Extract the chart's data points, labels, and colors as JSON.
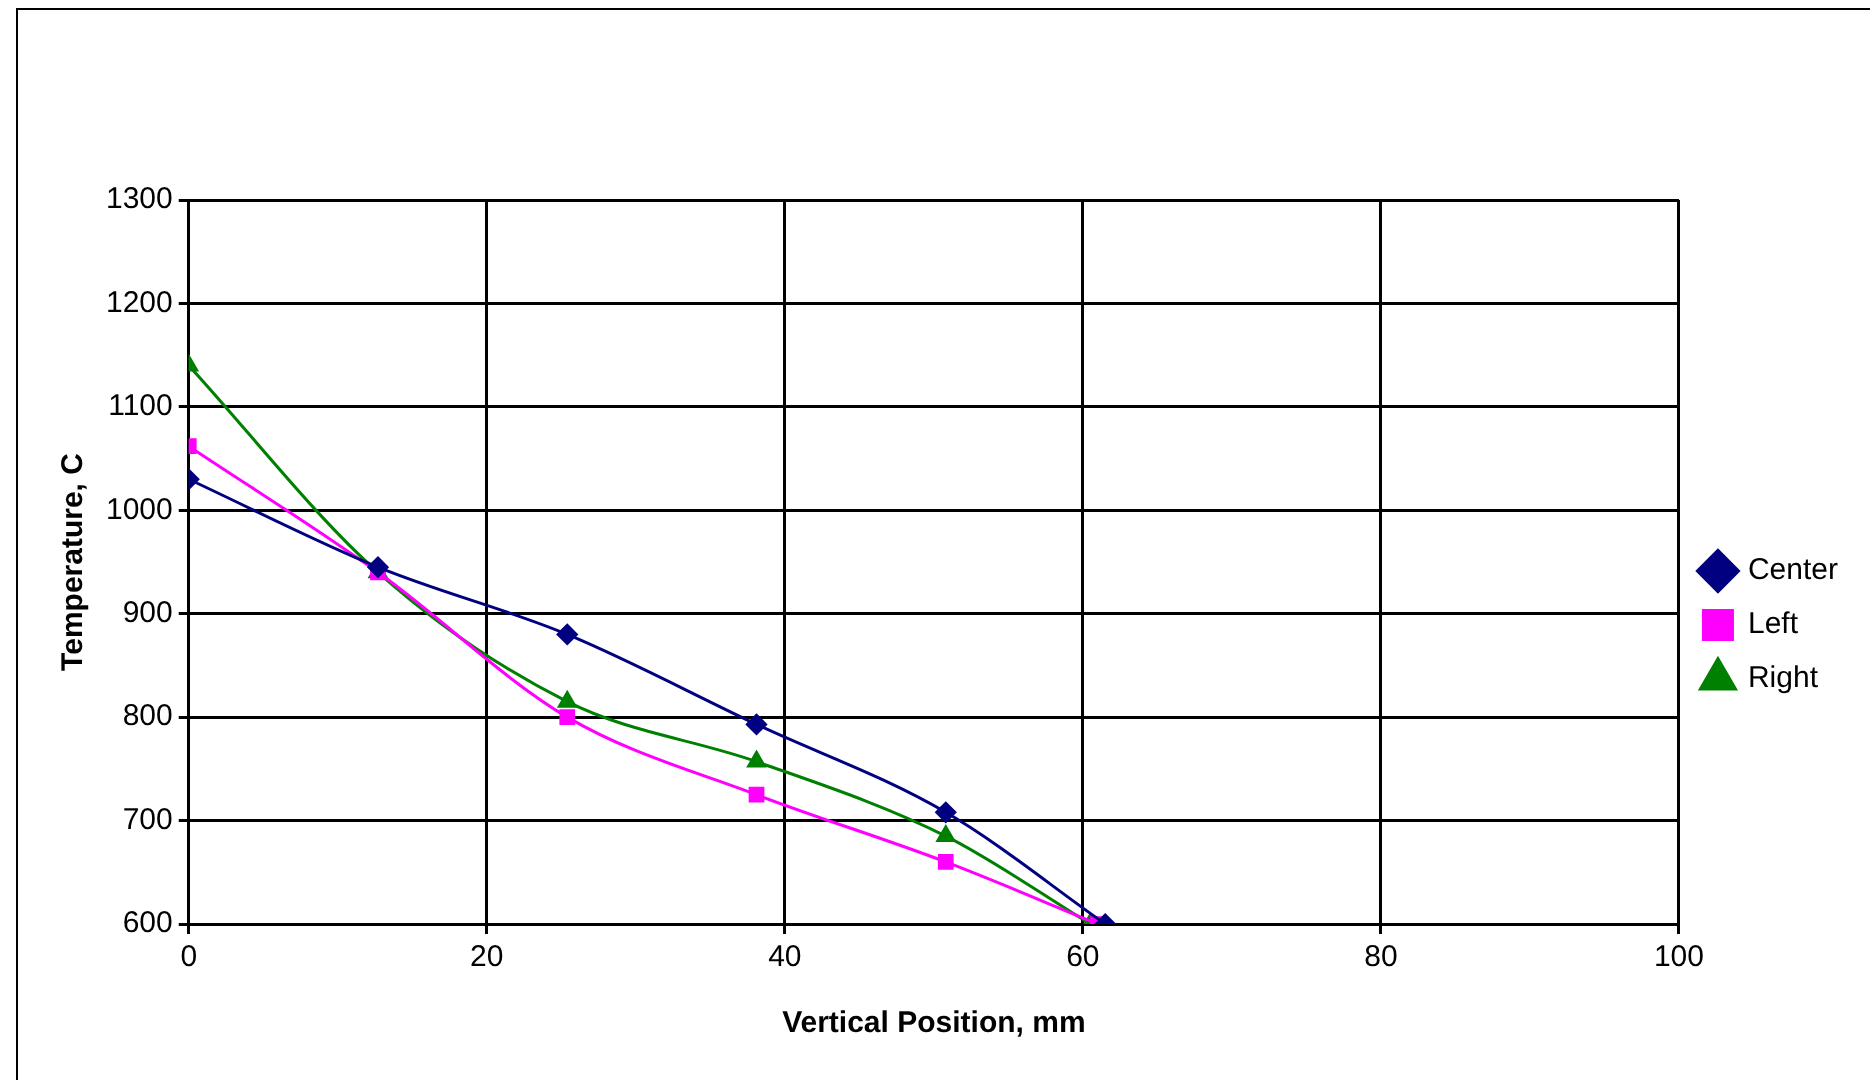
{
  "chart_data": {
    "type": "line",
    "xlabel": "Vertical Position, mm",
    "ylabel": "Temperature, C",
    "xlim": [
      0,
      100
    ],
    "xticks": [
      0,
      20,
      40,
      60,
      80,
      100
    ],
    "ylim": [
      600,
      1300
    ],
    "yticks": [
      600,
      700,
      800,
      900,
      1000,
      1100,
      1200,
      1300
    ],
    "grid": true,
    "legend": "right",
    "series": [
      {
        "name": "Center",
        "color": "#000080",
        "marker": "diamond",
        "x": [
          0,
          12.7,
          25.4,
          38.1,
          50.8,
          61.5
        ],
        "values": [
          1030,
          945,
          880,
          793,
          708,
          600
        ]
      },
      {
        "name": "Left",
        "color": "#ff00ff",
        "marker": "square",
        "x": [
          0,
          12.7,
          25.4,
          38.1,
          50.8,
          61
        ],
        "values": [
          1062,
          940,
          800,
          725,
          660,
          600
        ]
      },
      {
        "name": "Right",
        "color": "#008000",
        "marker": "triangle",
        "x": [
          0,
          12.7,
          25.4,
          38.1,
          50.8,
          60.5
        ],
        "values": [
          1140,
          940,
          815,
          757,
          685,
          600
        ]
      }
    ]
  }
}
